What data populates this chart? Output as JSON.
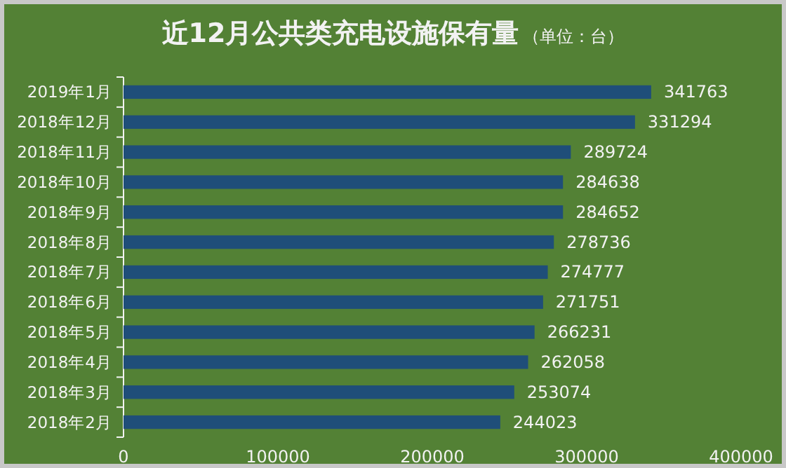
{
  "chart_data": {
    "type": "bar",
    "orientation": "horizontal",
    "title": "近12月公共类充电设施保有量",
    "subtitle": "（单位：台）",
    "categories": [
      "2019年1月",
      "2018年12月",
      "2018年11月",
      "2018年10月",
      "2018年9月",
      "2018年8月",
      "2018年7月",
      "2018年6月",
      "2018年5月",
      "2018年4月",
      "2018年3月",
      "2018年2月"
    ],
    "values": [
      341763,
      331294,
      289724,
      284638,
      284652,
      278736,
      274777,
      271751,
      266231,
      262058,
      253074,
      244023
    ],
    "color": "#1f4e79",
    "xlim": [
      0,
      400000
    ],
    "xticks": [
      0,
      100000,
      200000,
      300000,
      400000
    ],
    "data_labels": true
  }
}
